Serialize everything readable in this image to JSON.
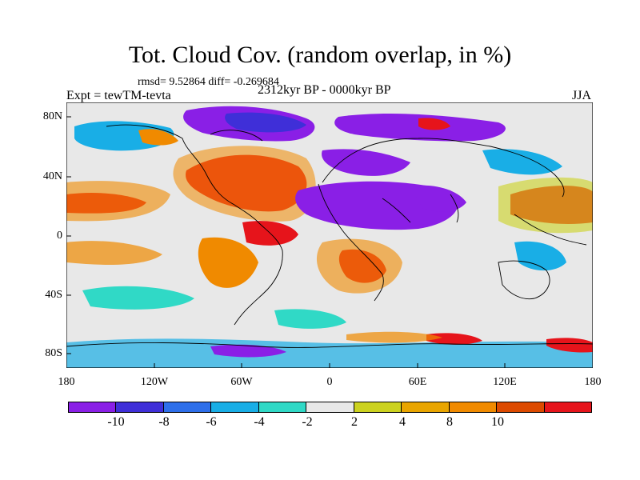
{
  "title": "Tot. Cloud Cov. (random overlap, in %)",
  "stats": "rmsd= 9.52864  diff= -0.269684",
  "experiment": "Expt = tewTM-tevta",
  "period": "2312kyr BP - 0000kyr BP",
  "season": "JJA",
  "y_ticks": [
    "80N",
    "40N",
    "0",
    "40S",
    "80S"
  ],
  "x_ticks": [
    "180",
    "120W",
    "60W",
    "0",
    "60E",
    "120E",
    "180"
  ],
  "colorbar": {
    "colors": [
      "#8A1FE6",
      "#3F2FD8",
      "#2E6FEA",
      "#19AEE6",
      "#30D9C6",
      "#E8E8E8",
      "#CCD21F",
      "#E9A500",
      "#F08A00",
      "#DC4A00",
      "#E6141B"
    ],
    "labels": [
      "-10",
      "-8",
      "-6",
      "-4",
      "-2",
      "2",
      "4",
      "8",
      "10"
    ]
  }
}
